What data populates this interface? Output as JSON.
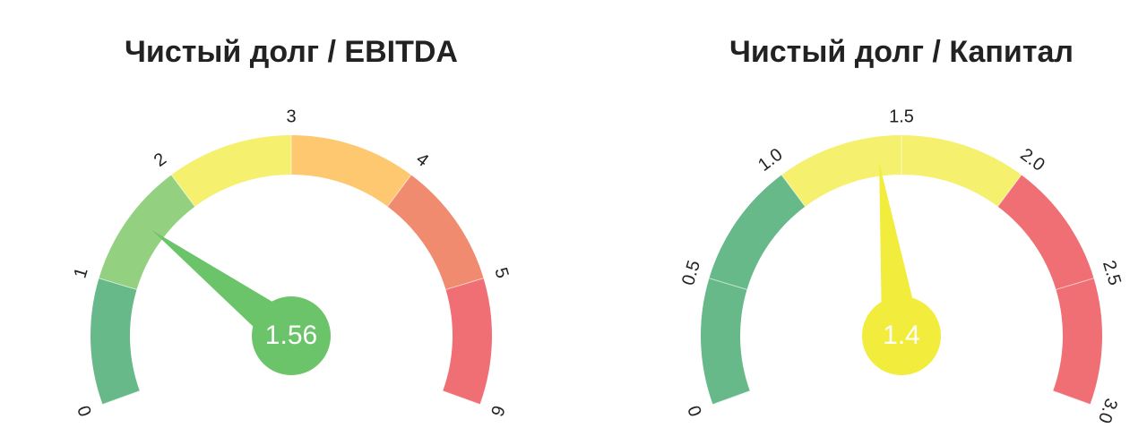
{
  "chart_data": [
    {
      "type": "gauge",
      "title": "Чистый долг / EBITDA",
      "value": 1.56,
      "needle_color": "#6cc46a",
      "ylim": [
        0,
        6
      ],
      "yticks": [
        0,
        1,
        2,
        3,
        4,
        5,
        6
      ],
      "bands": [
        {
          "from": 0,
          "to": 1,
          "color": "#67b98a"
        },
        {
          "from": 1,
          "to": 2,
          "color": "#93d07f"
        },
        {
          "from": 2,
          "to": 3,
          "color": "#f5f06e"
        },
        {
          "from": 3,
          "to": 4,
          "color": "#fdc86f"
        },
        {
          "from": 4,
          "to": 5,
          "color": "#f08b70"
        },
        {
          "from": 5,
          "to": 6,
          "color": "#ef6f75"
        }
      ]
    },
    {
      "type": "gauge",
      "title": "Чистый долг / Капитал",
      "value": 1.4,
      "needle_color": "#f2ec3c",
      "ylim": [
        0,
        3
      ],
      "yticks": [
        0,
        0.5,
        {
          "value": 1,
          "label": "1.0"
        },
        1.5,
        {
          "value": 2,
          "label": "2.0"
        },
        2.5,
        {
          "value": 3,
          "label": "3.0"
        }
      ],
      "bands": [
        {
          "from": 0,
          "to": 1,
          "color": "#67b98a"
        },
        {
          "from": 1,
          "to": 2,
          "color": "#f5f06e"
        },
        {
          "from": 2,
          "to": 3,
          "color": "#ef6f75"
        }
      ]
    }
  ]
}
